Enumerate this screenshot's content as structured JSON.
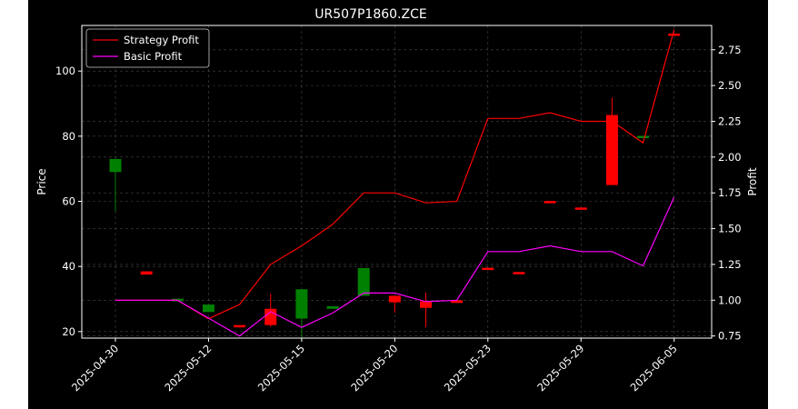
{
  "chart_data": {
    "type": "candlestick+line",
    "title": "UR507P1860.ZCE",
    "xlabel": "",
    "ylabel_left": "Price",
    "ylabel_right": "Profit",
    "ylim_left": [
      18,
      114
    ],
    "ylim_right": [
      0.735,
      2.92
    ],
    "yticks_left": [
      "20",
      "40",
      "60",
      "80",
      "100"
    ],
    "yticks_right": [
      "0.75",
      "1.00",
      "1.25",
      "1.50",
      "1.75",
      "2.00",
      "2.25",
      "2.50",
      "2.75"
    ],
    "xticks": [
      {
        "label": "2025-04-30",
        "index": 0
      },
      {
        "label": "2025-05-12",
        "index": 3
      },
      {
        "label": "2025-05-15",
        "index": 6
      },
      {
        "label": "2025-05-20",
        "index": 9
      },
      {
        "label": "2025-05-23",
        "index": 12
      },
      {
        "label": "2025-05-29",
        "index": 15
      },
      {
        "label": "2025-06-05",
        "index": 18
      }
    ],
    "grid": true,
    "legend": {
      "placement": "top-left"
    },
    "candles": [
      {
        "i": 0,
        "open": 69.0,
        "close": 73.0,
        "high": 73.0,
        "low": 57.0
      },
      {
        "i": 1,
        "open": 38.5,
        "close": 37.5,
        "high": 38.5,
        "low": 37.5
      },
      {
        "i": 2,
        "open": 29.3,
        "close": 30.1,
        "high": 30.1,
        "low": 29.3
      },
      {
        "i": 3,
        "open": 26.0,
        "close": 28.3,
        "high": 28.3,
        "low": 26.0
      },
      {
        "i": 4,
        "open": 22.0,
        "close": 21.3,
        "high": 22.0,
        "low": 21.3
      },
      {
        "i": 5,
        "open": 27.0,
        "close": 22.0,
        "high": 31.6,
        "low": 21.5
      },
      {
        "i": 6,
        "open": 24.0,
        "close": 33.0,
        "high": 33.0,
        "low": 17.0
      },
      {
        "i": 7,
        "open": 27.0,
        "close": 27.8,
        "high": 27.8,
        "low": 27.0
      },
      {
        "i": 8,
        "open": 31.0,
        "close": 39.5,
        "high": 39.5,
        "low": 31.0
      },
      {
        "i": 9,
        "open": 31.0,
        "close": 29.0,
        "high": 31.0,
        "low": 25.8
      },
      {
        "i": 10,
        "open": 29.3,
        "close": 27.3,
        "high": 32.0,
        "low": 21.3
      },
      {
        "i": 11,
        "open": 29.6,
        "close": 28.8,
        "high": 29.6,
        "low": 28.8
      },
      {
        "i": 12,
        "open": 39.6,
        "close": 39.4,
        "high": 39.6,
        "low": 39.4
      },
      {
        "i": 13,
        "open": 38.3,
        "close": 38.0,
        "high": 38.3,
        "low": 38.0
      },
      {
        "i": 14,
        "open": 60.1,
        "close": 59.8,
        "high": 60.1,
        "low": 59.8
      },
      {
        "i": 15,
        "open": 58.1,
        "close": 57.8,
        "high": 58.1,
        "low": 57.8
      },
      {
        "i": 16,
        "open": 86.5,
        "close": 65.0,
        "high": 91.8,
        "low": 65.0
      },
      {
        "i": 17,
        "open": 79.6,
        "close": 80.1,
        "high": 80.1,
        "low": 79.6
      },
      {
        "i": 18,
        "open": 111.5,
        "close": 111.2,
        "high": 111.5,
        "low": 111.2
      }
    ],
    "series": [
      {
        "name": "Strategy Profit",
        "color": "#ff0000",
        "values": [
          1.0,
          1.0,
          1.0,
          0.87,
          0.97,
          1.25,
          1.38,
          1.53,
          1.75,
          1.75,
          1.68,
          1.69,
          2.27,
          2.27,
          2.31,
          2.25,
          2.25,
          2.1,
          2.89
        ]
      },
      {
        "name": "Basic Profit",
        "color": "#ff00ff",
        "values": [
          1.0,
          1.0,
          1.0,
          0.875,
          0.75,
          0.92,
          0.81,
          0.91,
          1.05,
          1.05,
          0.99,
          1.0,
          1.34,
          1.34,
          1.38,
          1.34,
          1.34,
          1.24,
          1.72
        ]
      }
    ],
    "colors": {
      "up": "#008000",
      "down": "#ff0000",
      "background": "#000000",
      "text": "#ffffff",
      "grid": "#808080"
    }
  }
}
